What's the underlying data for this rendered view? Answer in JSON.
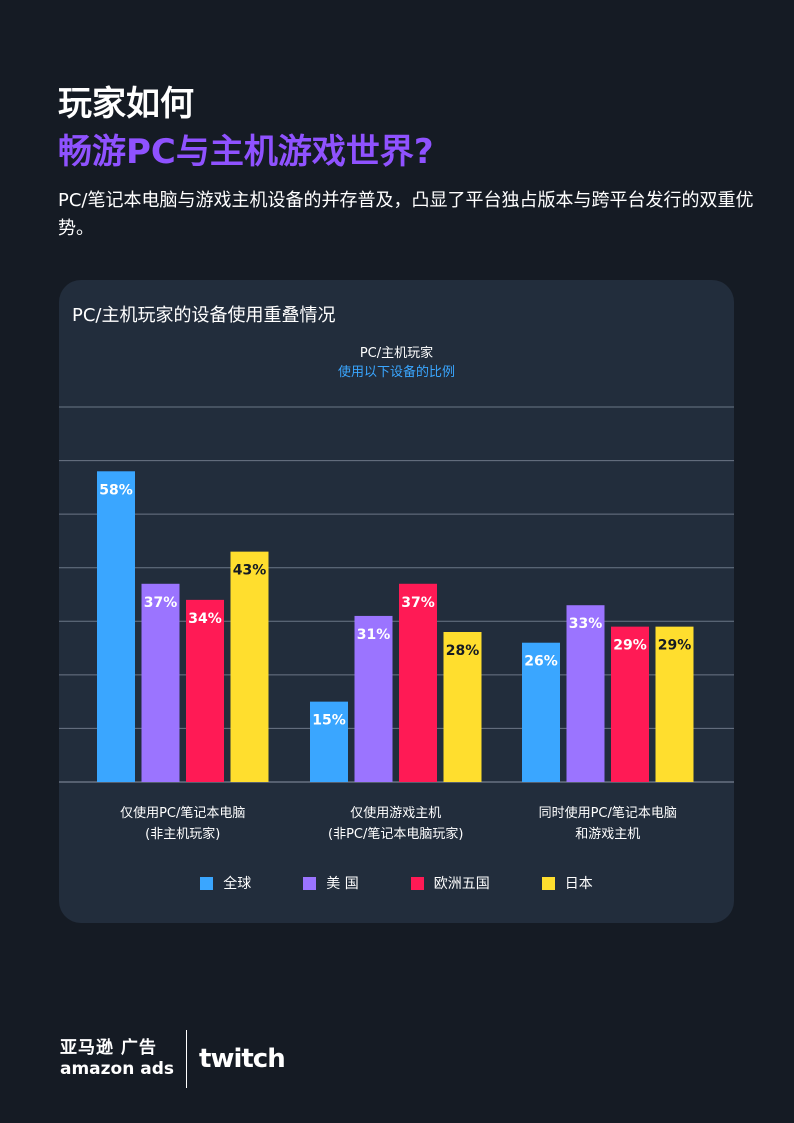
{
  "header": {
    "title_line1": "玩家如何",
    "title_line2": "畅游PC与主机游戏世界?",
    "intro": "PC/笔记本电脑与游戏主机设备的并存普及，凸显了平台独占版本与跨平台发行的双重优势。"
  },
  "card": {
    "title": "PC/主机玩家的设备使用重叠情况",
    "subheader": "PC/主机玩家",
    "subheader_note": "使用以下设备的比例"
  },
  "colors": {
    "background": "#151b24",
    "card": "#222d3c",
    "title_accent": "#8f52ff",
    "note_accent": "#3aa6ff"
  },
  "chart_data": {
    "type": "bar",
    "categories": [
      [
        "仅使用PC/笔记本电脑",
        "(非主机玩家)"
      ],
      [
        "仅使用游戏主机",
        "(非PC/笔记本电脑玩家)"
      ],
      [
        "同时使用PC/笔记本电脑",
        "和游戏主机"
      ]
    ],
    "series": [
      {
        "name": "全球",
        "color": "#3aa6ff",
        "label_color": "#ffffff",
        "values": [
          58,
          15,
          26
        ]
      },
      {
        "name": "美 国",
        "color": "#9b74ff",
        "label_color": "#ffffff",
        "values": [
          37,
          31,
          33
        ]
      },
      {
        "name": "欧洲五国",
        "color": "#ff1a55",
        "label_color": "#ffffff",
        "values": [
          34,
          37,
          29
        ]
      },
      {
        "name": "日本",
        "color": "#ffde2e",
        "label_color": "#151b24",
        "values": [
          43,
          28,
          29
        ]
      }
    ],
    "value_suffix": "%",
    "ylim": [
      0,
      70
    ],
    "grid": true,
    "legend_position": "bottom"
  },
  "footer": {
    "amazon_cn": "亚马逊 广告",
    "amazon_en": "amazon ads",
    "twitch": "twitch"
  }
}
